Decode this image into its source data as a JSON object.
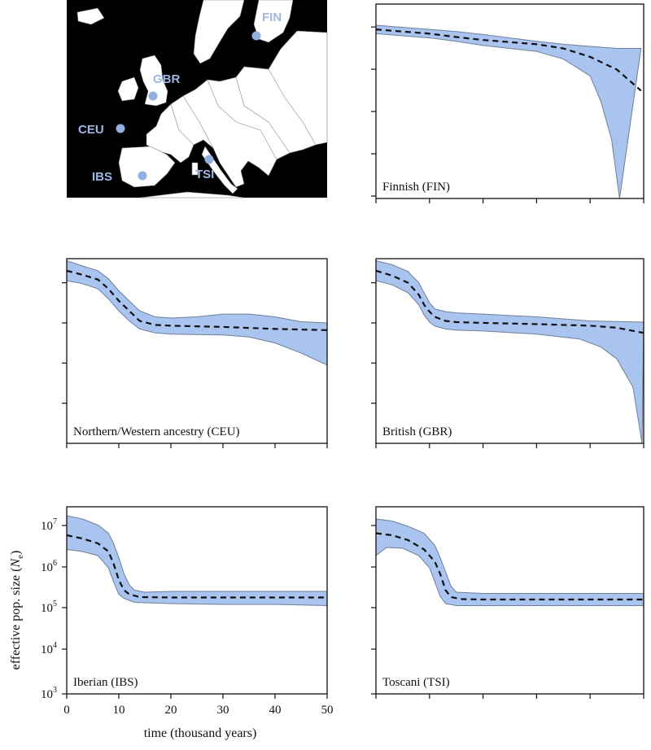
{
  "figure": {
    "ylabel": "effective pop. size (N",
    "ylabel_sub": "e",
    "ylabel_close": ")",
    "xlabel": "time (thousand years)"
  },
  "map": {
    "labels": [
      {
        "code": "FIN"
      },
      {
        "code": "GBR"
      },
      {
        "code": "CEU"
      },
      {
        "code": "IBS"
      },
      {
        "code": "TSI"
      }
    ],
    "land_color": "#ffffff",
    "sea_color": "#000000",
    "marker_color": "#8fb0e0"
  },
  "colors": {
    "band": "#a9c4ee",
    "band_edge": "#6e7f99",
    "median": "#111111"
  },
  "chart_data": [
    {
      "type": "area",
      "title": "Finnish (FIN)",
      "x_range": [
        0,
        50
      ],
      "y_scale": "log10",
      "y_range": [
        3,
        7.6
      ],
      "median": [
        [
          0,
          7.0
        ],
        [
          5,
          6.95
        ],
        [
          10,
          6.9
        ],
        [
          15,
          6.82
        ],
        [
          20,
          6.75
        ],
        [
          25,
          6.7
        ],
        [
          30,
          6.65
        ],
        [
          35,
          6.55
        ],
        [
          40,
          6.35
        ],
        [
          45,
          6.05
        ],
        [
          49.5,
          5.55
        ]
      ],
      "upper": [
        [
          0,
          7.1
        ],
        [
          5,
          7.05
        ],
        [
          10,
          7.0
        ],
        [
          15,
          6.95
        ],
        [
          20,
          6.88
        ],
        [
          25,
          6.8
        ],
        [
          30,
          6.72
        ],
        [
          35,
          6.65
        ],
        [
          40,
          6.6
        ],
        [
          45,
          6.55
        ],
        [
          49.5,
          6.55
        ]
      ],
      "lower": [
        [
          0,
          6.9
        ],
        [
          5,
          6.85
        ],
        [
          10,
          6.8
        ],
        [
          15,
          6.72
        ],
        [
          20,
          6.62
        ],
        [
          25,
          6.55
        ],
        [
          30,
          6.48
        ],
        [
          35,
          6.3
        ],
        [
          40,
          5.9
        ],
        [
          42,
          5.3
        ],
        [
          44,
          4.4
        ],
        [
          45.5,
          3.0
        ]
      ]
    },
    {
      "type": "area",
      "title": "Northern/Western ancestry (CEU)",
      "x_range": [
        0,
        50
      ],
      "y_scale": "log10",
      "y_range": [
        3,
        7.6
      ],
      "median": [
        [
          0,
          7.3
        ],
        [
          3,
          7.2
        ],
        [
          6,
          7.08
        ],
        [
          8,
          6.85
        ],
        [
          10,
          6.55
        ],
        [
          12,
          6.3
        ],
        [
          14,
          6.05
        ],
        [
          17,
          5.95
        ],
        [
          20,
          5.93
        ],
        [
          30,
          5.9
        ],
        [
          40,
          5.85
        ],
        [
          50,
          5.82
        ]
      ],
      "upper": [
        [
          0,
          7.55
        ],
        [
          3,
          7.42
        ],
        [
          6,
          7.3
        ],
        [
          8,
          7.1
        ],
        [
          10,
          6.8
        ],
        [
          12,
          6.55
        ],
        [
          14,
          6.3
        ],
        [
          17,
          6.15
        ],
        [
          20,
          6.12
        ],
        [
          25,
          6.15
        ],
        [
          30,
          6.22
        ],
        [
          35,
          6.22
        ],
        [
          40,
          6.15
        ],
        [
          45,
          6.03
        ],
        [
          50,
          6.0
        ]
      ],
      "lower": [
        [
          0,
          7.05
        ],
        [
          3,
          6.98
        ],
        [
          6,
          6.85
        ],
        [
          8,
          6.6
        ],
        [
          10,
          6.3
        ],
        [
          12,
          6.05
        ],
        [
          14,
          5.85
        ],
        [
          17,
          5.75
        ],
        [
          20,
          5.72
        ],
        [
          30,
          5.7
        ],
        [
          35,
          5.65
        ],
        [
          40,
          5.5
        ],
        [
          45,
          5.25
        ],
        [
          50,
          4.95
        ]
      ]
    },
    {
      "type": "area",
      "title": "British (GBR)",
      "x_range": [
        0,
        50
      ],
      "y_scale": "log10",
      "y_range": [
        3,
        7.6
      ],
      "median": [
        [
          0,
          7.3
        ],
        [
          3,
          7.18
        ],
        [
          6,
          7.0
        ],
        [
          8,
          6.7
        ],
        [
          9,
          6.45
        ],
        [
          10,
          6.28
        ],
        [
          11,
          6.15
        ],
        [
          13,
          6.05
        ],
        [
          15,
          6.02
        ],
        [
          20,
          6.0
        ],
        [
          30,
          5.97
        ],
        [
          40,
          5.93
        ],
        [
          45,
          5.88
        ],
        [
          50,
          5.75
        ]
      ],
      "upper": [
        [
          0,
          7.55
        ],
        [
          3,
          7.45
        ],
        [
          6,
          7.28
        ],
        [
          8,
          7.0
        ],
        [
          9,
          6.75
        ],
        [
          10,
          6.5
        ],
        [
          11,
          6.35
        ],
        [
          13,
          6.28
        ],
        [
          15,
          6.25
        ],
        [
          20,
          6.22
        ],
        [
          30,
          6.15
        ],
        [
          40,
          6.05
        ],
        [
          50,
          6.02
        ]
      ],
      "lower": [
        [
          0,
          7.05
        ],
        [
          3,
          6.95
        ],
        [
          6,
          6.75
        ],
        [
          8,
          6.45
        ],
        [
          9,
          6.2
        ],
        [
          10,
          6.02
        ],
        [
          11,
          5.92
        ],
        [
          13,
          5.85
        ],
        [
          15,
          5.82
        ],
        [
          20,
          5.8
        ],
        [
          30,
          5.72
        ],
        [
          38,
          5.6
        ],
        [
          42,
          5.4
        ],
        [
          45,
          5.1
        ],
        [
          48,
          4.4
        ],
        [
          49.7,
          3.0
        ]
      ]
    },
    {
      "type": "area",
      "title": "Iberian (IBS)",
      "x_range": [
        0,
        50
      ],
      "y_scale": "log10",
      "y_range": [
        3,
        7.6
      ],
      "yticks": [
        3,
        4,
        5,
        6,
        7
      ],
      "xticks": [
        0,
        10,
        20,
        30,
        40,
        50
      ],
      "median": [
        [
          0,
          6.9
        ],
        [
          3,
          6.82
        ],
        [
          6,
          6.7
        ],
        [
          8,
          6.5
        ],
        [
          9,
          6.2
        ],
        [
          10,
          5.8
        ],
        [
          11,
          5.55
        ],
        [
          12,
          5.45
        ],
        [
          14,
          5.38
        ],
        [
          20,
          5.37
        ],
        [
          30,
          5.37
        ],
        [
          40,
          5.37
        ],
        [
          50,
          5.37
        ]
      ],
      "upper": [
        [
          0,
          7.38
        ],
        [
          3,
          7.3
        ],
        [
          6,
          7.15
        ],
        [
          8,
          6.95
        ],
        [
          9,
          6.7
        ],
        [
          10,
          6.35
        ],
        [
          11,
          5.95
        ],
        [
          12,
          5.68
        ],
        [
          13,
          5.55
        ],
        [
          15,
          5.5
        ],
        [
          20,
          5.52
        ],
        [
          30,
          5.52
        ],
        [
          40,
          5.52
        ],
        [
          50,
          5.52
        ]
      ],
      "lower": [
        [
          0,
          6.55
        ],
        [
          3,
          6.5
        ],
        [
          6,
          6.4
        ],
        [
          8,
          6.1
        ],
        [
          9,
          5.75
        ],
        [
          10,
          5.45
        ],
        [
          11,
          5.35
        ],
        [
          13,
          5.25
        ],
        [
          20,
          5.22
        ],
        [
          30,
          5.2
        ],
        [
          40,
          5.2
        ],
        [
          50,
          5.17
        ]
      ]
    },
    {
      "type": "area",
      "title": "Toscani (TSI)",
      "x_range": [
        0,
        50
      ],
      "y_scale": "log10",
      "y_range": [
        3,
        7.6
      ],
      "median": [
        [
          0,
          6.95
        ],
        [
          3,
          6.9
        ],
        [
          6,
          6.78
        ],
        [
          9,
          6.55
        ],
        [
          11,
          6.25
        ],
        [
          12,
          5.95
        ],
        [
          13,
          5.55
        ],
        [
          14,
          5.38
        ],
        [
          16,
          5.33
        ],
        [
          20,
          5.32
        ],
        [
          30,
          5.32
        ],
        [
          40,
          5.32
        ],
        [
          50,
          5.32
        ]
      ],
      "upper": [
        [
          0,
          7.3
        ],
        [
          3,
          7.25
        ],
        [
          6,
          7.12
        ],
        [
          9,
          6.95
        ],
        [
          11,
          6.65
        ],
        [
          12,
          6.35
        ],
        [
          13,
          6.0
        ],
        [
          14,
          5.65
        ],
        [
          15,
          5.5
        ],
        [
          20,
          5.47
        ],
        [
          30,
          5.47
        ],
        [
          40,
          5.47
        ],
        [
          50,
          5.47
        ]
      ],
      "lower": [
        [
          0,
          6.4
        ],
        [
          2,
          6.6
        ],
        [
          5,
          6.58
        ],
        [
          8,
          6.4
        ],
        [
          10,
          6.1
        ],
        [
          11,
          5.75
        ],
        [
          12,
          5.4
        ],
        [
          13,
          5.22
        ],
        [
          15,
          5.17
        ],
        [
          20,
          5.17
        ],
        [
          30,
          5.17
        ],
        [
          40,
          5.17
        ],
        [
          50,
          5.17
        ]
      ]
    }
  ]
}
